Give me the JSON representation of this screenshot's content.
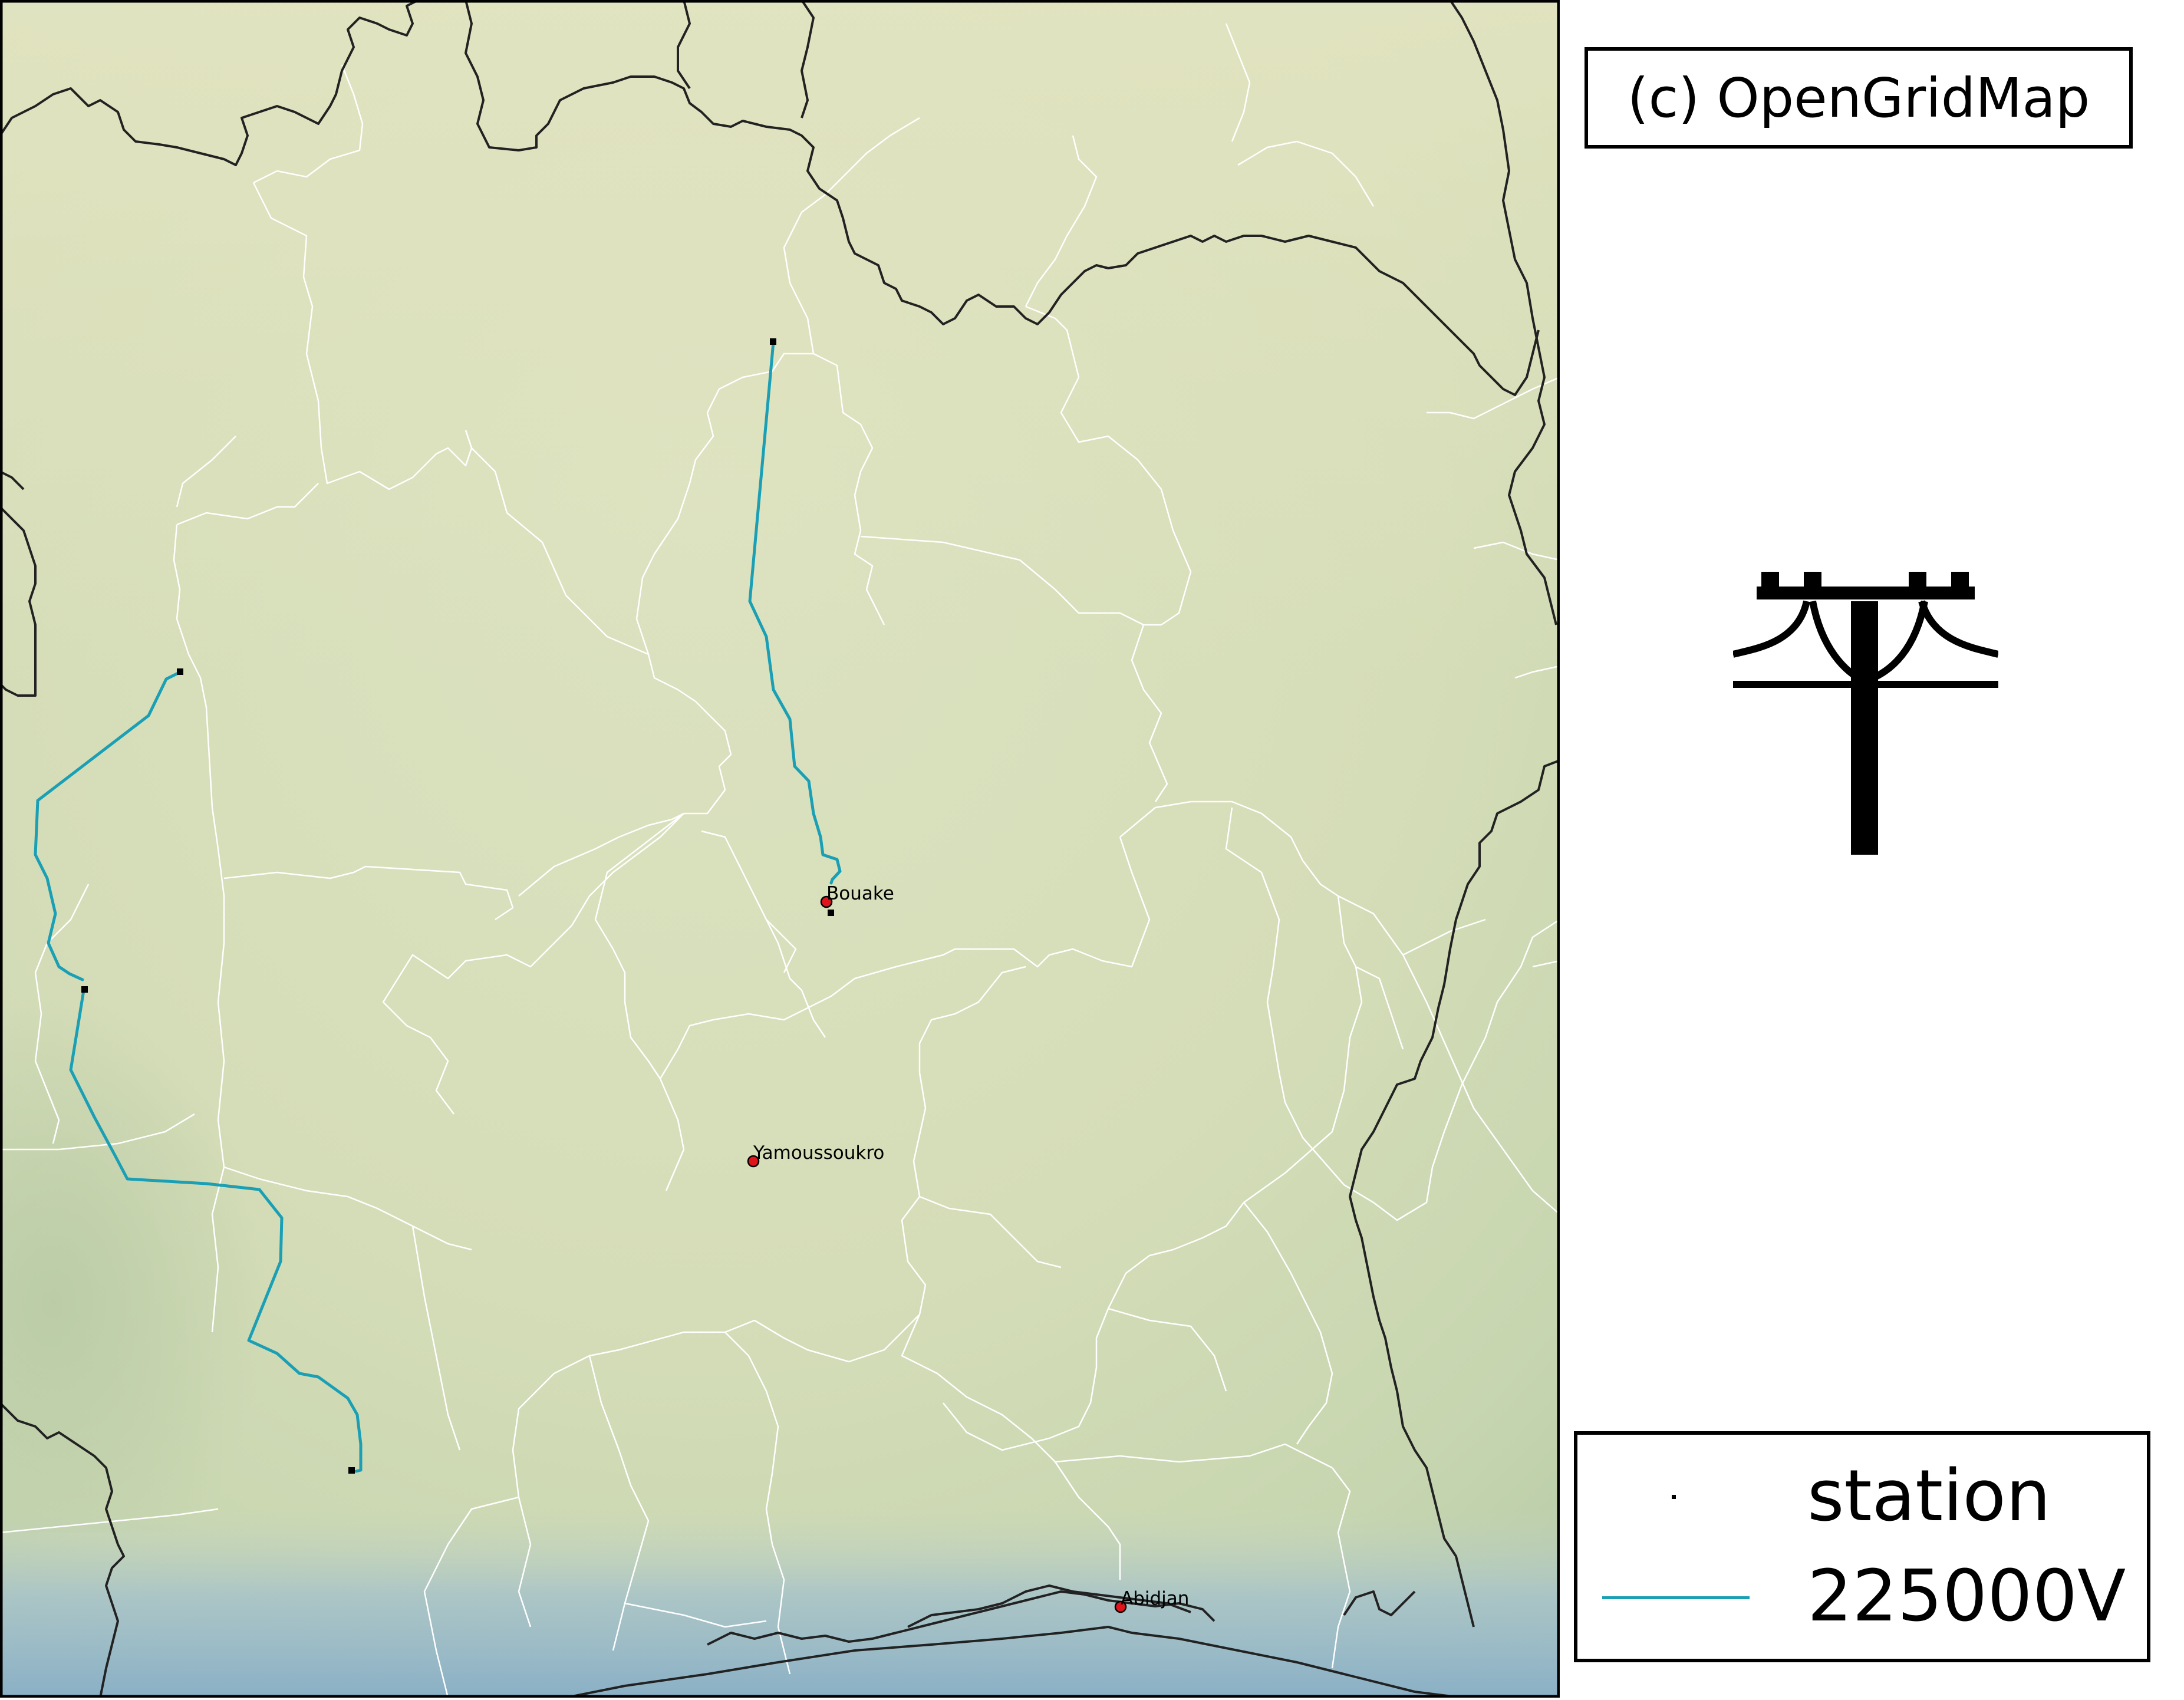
{
  "copyright": "(c) OpenGridMap",
  "legend": {
    "items": [
      {
        "label": "station",
        "symbol": "station-dot"
      },
      {
        "label": "225000V",
        "symbol": "line",
        "color": "#1a9fb5"
      }
    ]
  },
  "cities": [
    {
      "name": "Bouake"
    },
    {
      "name": "Yamoussoukro"
    },
    {
      "name": "Abidjan"
    }
  ],
  "colors": {
    "line_225kv": "#1a9fb5",
    "station": "#000000",
    "city_marker": "#e0141b",
    "border_national": "#222222",
    "border_internal": "#ffffff",
    "land": "#d6dcb8",
    "sea": "#8fb4c8"
  },
  "icons": {
    "logo": "power-pylon-icon"
  }
}
